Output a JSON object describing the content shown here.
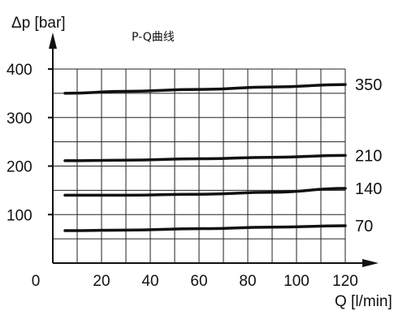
{
  "chart_data": {
    "type": "line",
    "title": "P-Q曲线",
    "xlabel": "Q [l/min]",
    "ylabel": "Δp [bar]",
    "xlim": [
      0,
      120
    ],
    "ylim": [
      0,
      400
    ],
    "x_ticks": [
      "0",
      "20",
      "40",
      "60",
      "80",
      "100",
      "120"
    ],
    "y_ticks": [
      "100",
      "200",
      "300",
      "400"
    ],
    "grid": true,
    "series": [
      {
        "name": "350",
        "x": [
          5,
          30,
          60,
          90,
          120
        ],
        "y": [
          350,
          354,
          358,
          363,
          368
        ]
      },
      {
        "name": "210",
        "x": [
          5,
          30,
          60,
          90,
          120
        ],
        "y": [
          211,
          212,
          215,
          218,
          222
        ]
      },
      {
        "name": "140",
        "x": [
          5,
          30,
          60,
          90,
          120
        ],
        "y": [
          140,
          140,
          142,
          146,
          154
        ]
      },
      {
        "name": "70",
        "x": [
          5,
          30,
          60,
          90,
          120
        ],
        "y": [
          67,
          68,
          71,
          74,
          77
        ]
      }
    ],
    "colors": {
      "line": "#111111",
      "grid": "#222222"
    }
  }
}
